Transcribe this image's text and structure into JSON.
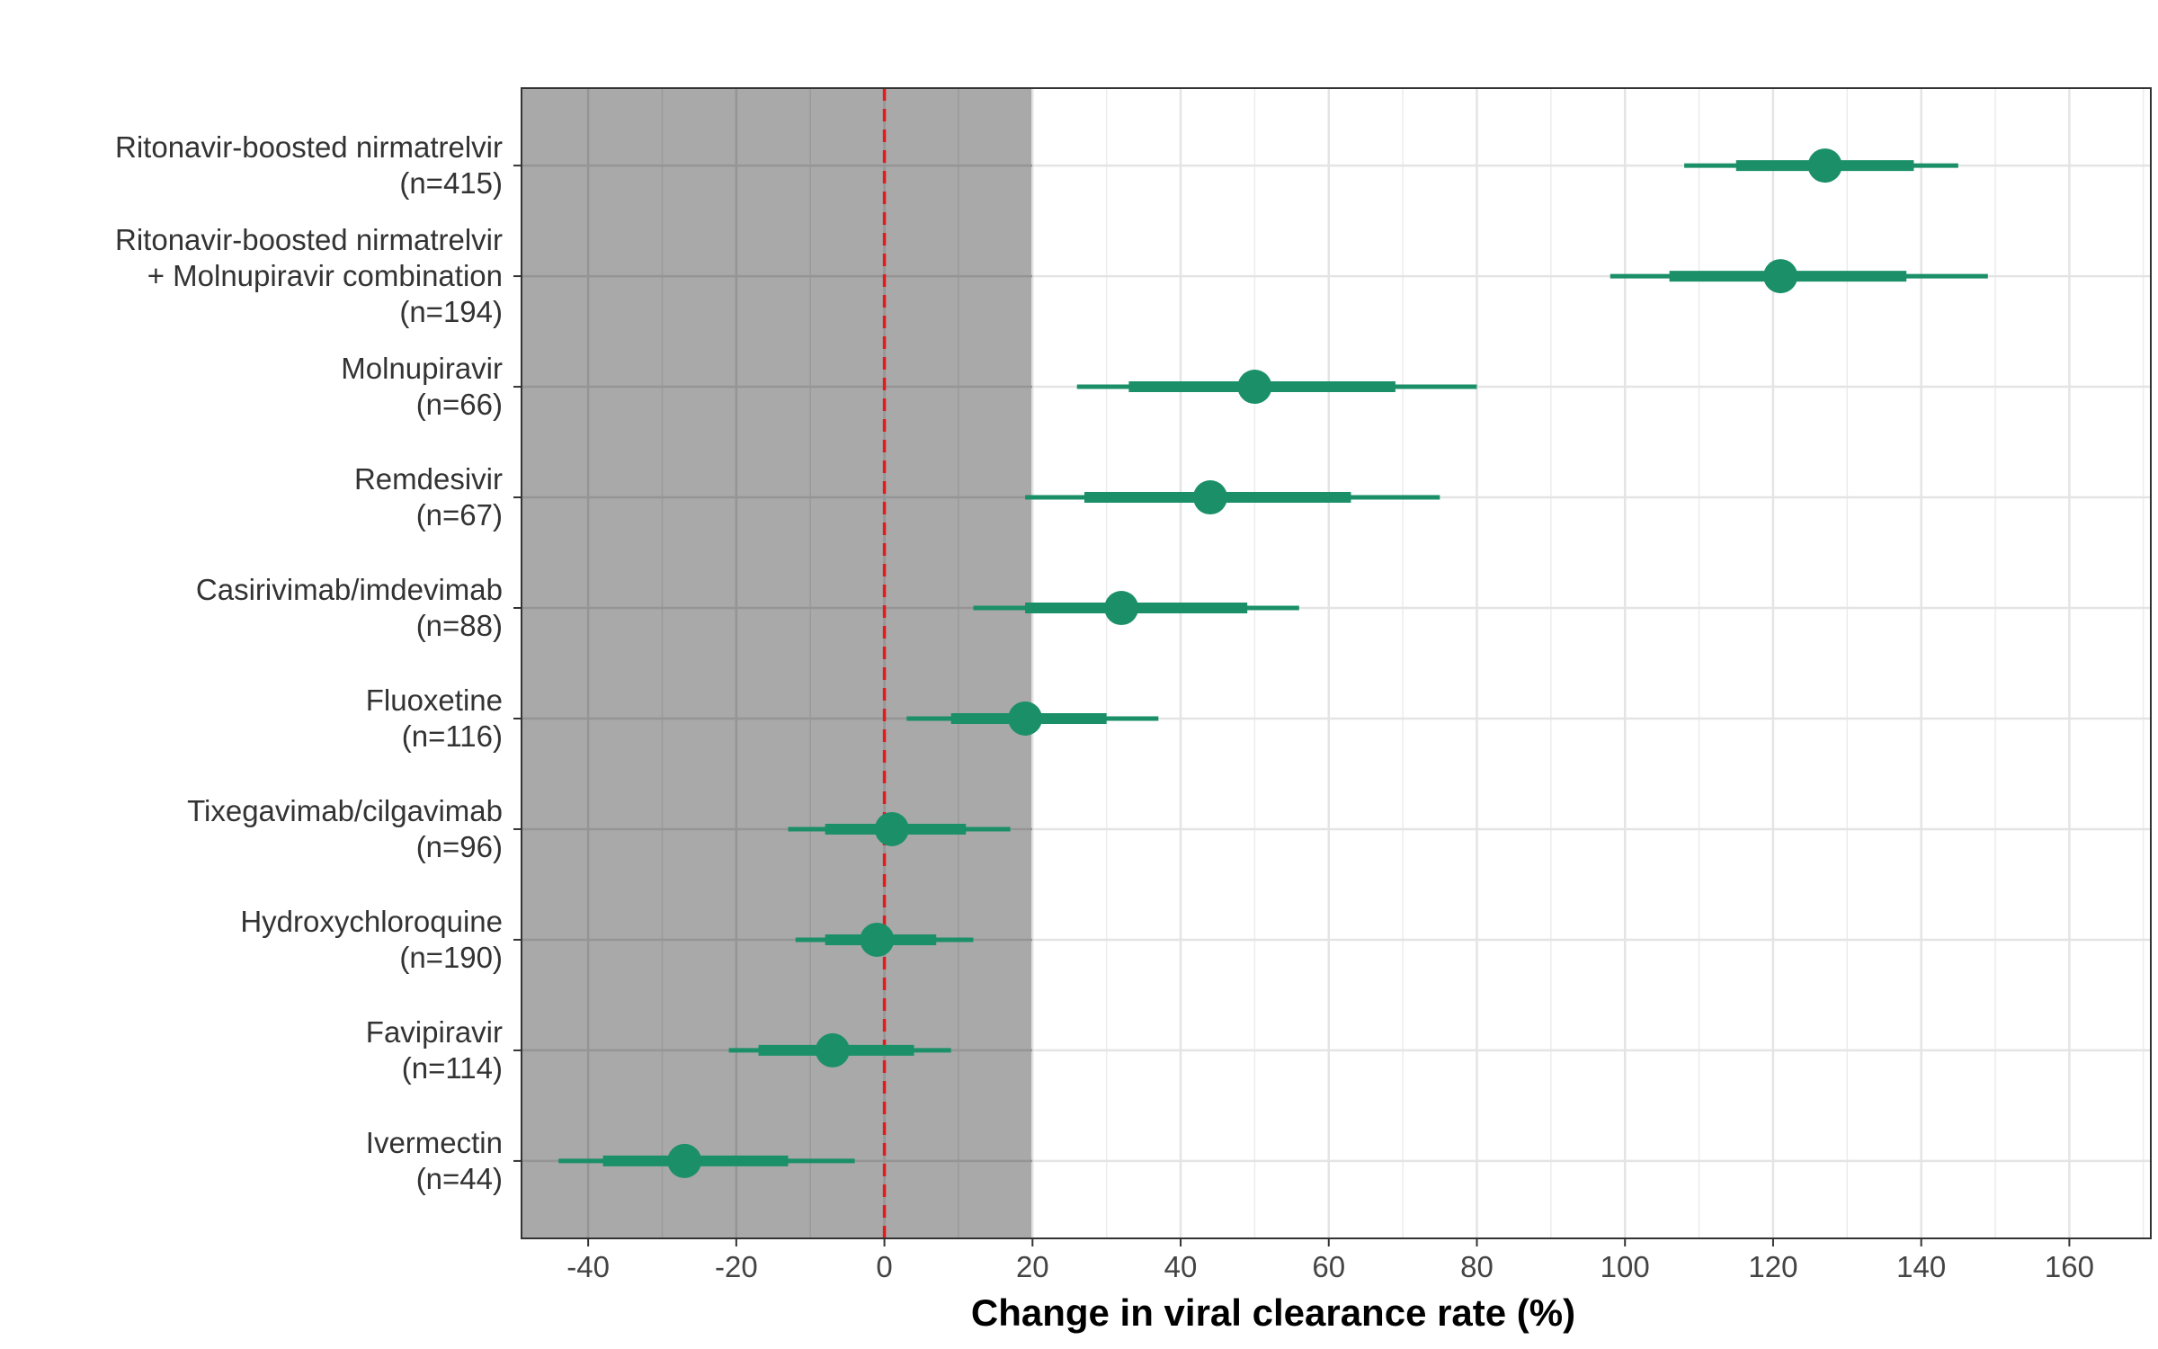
{
  "chart_data": {
    "type": "forest",
    "xlabel": "Change in viral clearance rate (%)",
    "xlim": [
      -49,
      171
    ],
    "x_ticks": [
      -40,
      -20,
      0,
      20,
      40,
      60,
      80,
      100,
      120,
      140,
      160
    ],
    "x_tick_labels": [
      "-40",
      "-20",
      "0",
      "20",
      "40",
      "60",
      "80",
      "100",
      "120",
      "140",
      "160"
    ],
    "grid": true,
    "reference_line": {
      "x": 0,
      "style": "dashed",
      "color": "#e41a1c"
    },
    "shaded_region": {
      "x_start": -49,
      "x_end": 20,
      "color": "#a9a9a9"
    },
    "point_color": "#1b9068",
    "rows": [
      {
        "label_lines": [
          "Ritonavir-boosted nirmatrelvir",
          "(n=415)"
        ],
        "estimate": 127,
        "inner": [
          115,
          139
        ],
        "outer": [
          108,
          145
        ]
      },
      {
        "label_lines": [
          "Ritonavir-boosted nirmatrelvir",
          "+ Molnupiravir combination",
          "(n=194)"
        ],
        "estimate": 121,
        "inner": [
          106,
          138
        ],
        "outer": [
          98,
          149
        ]
      },
      {
        "label_lines": [
          "Molnupiravir",
          "(n=66)"
        ],
        "estimate": 50,
        "inner": [
          33,
          69
        ],
        "outer": [
          26,
          80
        ]
      },
      {
        "label_lines": [
          "Remdesivir",
          "(n=67)"
        ],
        "estimate": 44,
        "inner": [
          27,
          63
        ],
        "outer": [
          19,
          75
        ]
      },
      {
        "label_lines": [
          "Casirivimab/imdevimab",
          "(n=88)"
        ],
        "estimate": 32,
        "inner": [
          19,
          49
        ],
        "outer": [
          12,
          56
        ]
      },
      {
        "label_lines": [
          "Fluoxetine",
          "(n=116)"
        ],
        "estimate": 19,
        "inner": [
          9,
          30
        ],
        "outer": [
          3,
          37
        ]
      },
      {
        "label_lines": [
          "Tixegavimab/cilgavimab",
          "(n=96)"
        ],
        "estimate": 1,
        "inner": [
          -8,
          11
        ],
        "outer": [
          -13,
          17
        ]
      },
      {
        "label_lines": [
          "Hydroxychloroquine",
          "(n=190)"
        ],
        "estimate": -1,
        "inner": [
          -8,
          7
        ],
        "outer": [
          -12,
          12
        ]
      },
      {
        "label_lines": [
          "Favipiravir",
          "(n=114)"
        ],
        "estimate": -7,
        "inner": [
          -17,
          4
        ],
        "outer": [
          -21,
          9
        ]
      },
      {
        "label_lines": [
          "Ivermectin",
          "(n=44)"
        ],
        "estimate": -27,
        "inner": [
          -38,
          -13
        ],
        "outer": [
          -44,
          -4
        ]
      }
    ]
  }
}
